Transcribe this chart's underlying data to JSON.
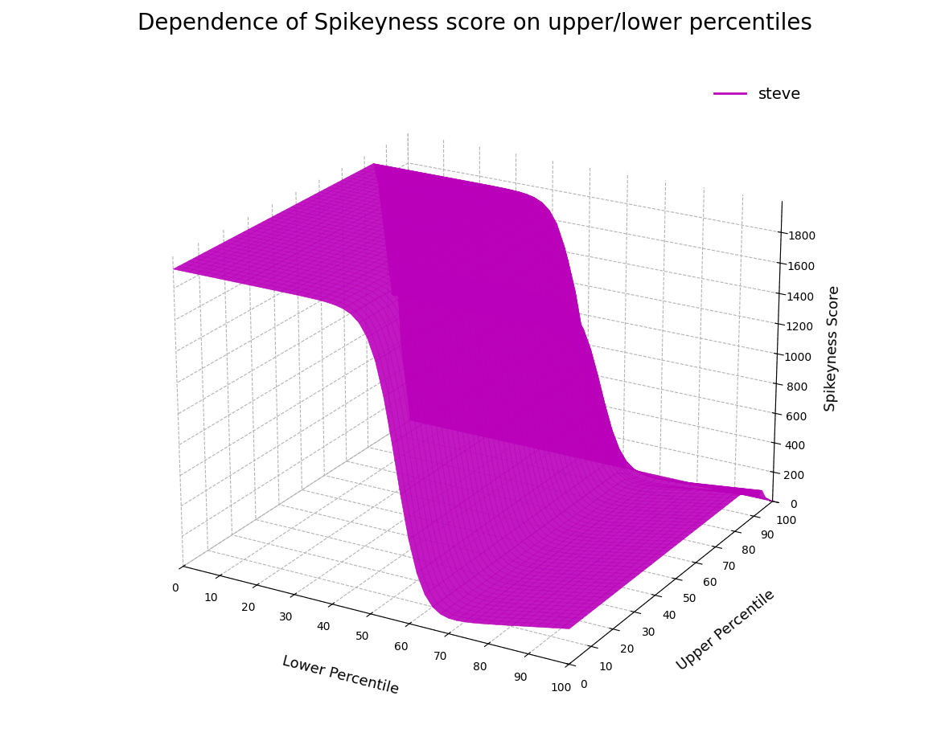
{
  "title": "Dependence of Spikeyness score on upper/lower percentiles",
  "xlabel": "Lower Percentile",
  "ylabel": "Upper Percentile",
  "zlabel": "Spikeyness Score",
  "legend_label": "steve",
  "surface_color": "#BB00BB",
  "edge_color": "#BB00BB",
  "background_color": "#ffffff",
  "zlim": [
    0,
    2000
  ],
  "zticks": [
    0,
    200,
    400,
    600,
    800,
    1000,
    1200,
    1400,
    1600,
    1800
  ],
  "figsize": [
    11.8,
    9.27
  ],
  "dpi": 100,
  "title_fontsize": 20,
  "axis_label_fontsize": 13,
  "tick_fontsize": 10,
  "elev": 22,
  "azim": -60
}
